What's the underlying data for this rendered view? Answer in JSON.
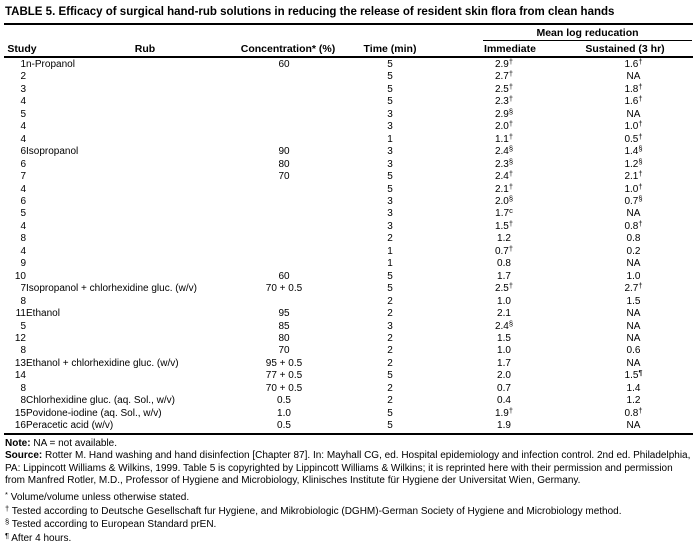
{
  "title": "TABLE 5. Efficacy of surgical hand-rub solutions in reducing the release of resident skin flora from clean hands",
  "table": {
    "span_header": "Mean log reducation",
    "columns": [
      "Study",
      "Rub",
      "Concentration* (%)",
      "Time (min)",
      "Immediate",
      "Sustained (3 hr)"
    ],
    "rows": [
      {
        "study": "1",
        "rub": "n-Propanol",
        "conc": "60",
        "time": "5",
        "imm": "2.9",
        "imm_sup": "†",
        "sus": "1.6",
        "sus_sup": "†"
      },
      {
        "study": "2",
        "time": "5",
        "imm": "2.7",
        "imm_sup": "†",
        "sus": "NA"
      },
      {
        "study": "3",
        "time": "5",
        "imm": "2.5",
        "imm_sup": "†",
        "sus": "1.8",
        "sus_sup": "†"
      },
      {
        "study": "4",
        "time": "5",
        "imm": "2.3",
        "imm_sup": "†",
        "sus": "1.6",
        "sus_sup": "†"
      },
      {
        "study": "5",
        "time": "3",
        "imm": "2.9",
        "imm_sup": "§",
        "sus": "NA"
      },
      {
        "study": "4",
        "time": "3",
        "imm": "2.0",
        "imm_sup": "†",
        "sus": "1.0",
        "sus_sup": "†"
      },
      {
        "study": "4",
        "time": "1",
        "imm": "1.1",
        "imm_sup": "†",
        "sus": "0.5",
        "sus_sup": "†"
      },
      {
        "study": "6",
        "rub": "Isopropanol",
        "conc": "90",
        "time": "3",
        "imm": "2.4",
        "imm_sup": "§",
        "sus": "1.4",
        "sus_sup": "§"
      },
      {
        "study": "6",
        "conc": "80",
        "time": "3",
        "imm": "2.3",
        "imm_sup": "§",
        "sus": "1.2",
        "sus_sup": "§"
      },
      {
        "study": "7",
        "conc": "70",
        "time": "5",
        "imm": "2.4",
        "imm_sup": "†",
        "sus": "2.1",
        "sus_sup": "†"
      },
      {
        "study": "4",
        "time": "5",
        "imm": "2.1",
        "imm_sup": "†",
        "sus": "1.0",
        "sus_sup": "†"
      },
      {
        "study": "6",
        "time": "3",
        "imm": "2.0",
        "imm_sup": "§",
        "sus": "0.7",
        "sus_sup": "§"
      },
      {
        "study": "5",
        "time": "3",
        "imm": "1.7",
        "imm_sup": "c",
        "sus": "NA"
      },
      {
        "study": "4",
        "time": "3",
        "imm": "1.5",
        "imm_sup": "†",
        "sus": "0.8",
        "sus_sup": "†"
      },
      {
        "study": "8",
        "time": "2",
        "imm": "1.2",
        "sus": "0.8"
      },
      {
        "study": "4",
        "time": "1",
        "imm": "0.7",
        "imm_sup": "†",
        "sus": "0.2"
      },
      {
        "study": "9",
        "time": "1",
        "imm": "0.8",
        "sus": "NA"
      },
      {
        "study": "10",
        "conc": "60",
        "time": "5",
        "imm": "1.7",
        "sus": "1.0"
      },
      {
        "study": "7",
        "rub": "Isopropanol + chlorhexidine gluc. (w/v)",
        "conc": "70 + 0.5",
        "time": "5",
        "imm": "2.5",
        "imm_sup": "†",
        "sus": "2.7",
        "sus_sup": "†"
      },
      {
        "study": "8",
        "time": "2",
        "imm": "1.0",
        "sus": "1.5"
      },
      {
        "study": "11",
        "rub": "Ethanol",
        "conc": "95",
        "time": "2",
        "imm": "2.1",
        "sus": "NA"
      },
      {
        "study": "5",
        "conc": "85",
        "time": "3",
        "imm": "2.4",
        "imm_sup": "§",
        "sus": "NA"
      },
      {
        "study": "12",
        "conc": "80",
        "time": "2",
        "imm": "1.5",
        "sus": "NA"
      },
      {
        "study": "8",
        "conc": "70",
        "time": "2",
        "imm": "1.0",
        "sus": "0.6"
      },
      {
        "study": "13",
        "rub": "Ethanol + chlorhexidine gluc. (w/v)",
        "conc": "95 + 0.5",
        "time": "2",
        "imm": "1.7",
        "sus": "NA"
      },
      {
        "study": "14",
        "conc": "77 + 0.5",
        "time": "5",
        "imm": "2.0",
        "sus": "1.5",
        "sus_sup": "¶"
      },
      {
        "study": "8",
        "conc": "70 + 0.5",
        "time": "2",
        "imm": "0.7",
        "sus": "1.4"
      },
      {
        "study": "8",
        "rub": "Chlorhexidine gluc. (aq. Sol., w/v)",
        "conc": "0.5",
        "time": "2",
        "imm": "0.4",
        "sus": "1.2"
      },
      {
        "study": "15",
        "rub": "Povidone-iodine (aq. Sol., w/v)",
        "conc": "1.0",
        "time": "5",
        "imm": "1.9",
        "imm_sup": "†",
        "sus": "0.8",
        "sus_sup": "†"
      },
      {
        "study": "16",
        "rub": "Peracetic acid (w/v)",
        "conc": "0.5",
        "time": "5",
        "imm": "1.9",
        "sus": "NA"
      }
    ]
  },
  "notes": {
    "note_label": "Note:",
    "note_text": " NA = not available.",
    "source_label": "Source:",
    "source_text": " Rotter M. Hand washing and hand disinfection [Chapter 87]. In: Mayhall CG, ed. Hospital epidemiology and infection control. 2nd ed. Philadelphia, PA: Lippincott Williams & Wilkins, 1999. Table 5 is copyrighted by Lippincott Williams & Wilkins; it is reprinted here with their permission and permission from Manfred Rotler, M.D., Professor of Hygiene and Microbiology, Klinisches Institute für Hygiene der Universitat Wien, Germany.",
    "footnotes": [
      {
        "sup": "*",
        "text": "Volume/volume unless otherwise stated."
      },
      {
        "sup": "†",
        "text": "Tested according to Deutsche Gesellschaft fur Hygiene, and Mikrobiologic (DGHM)-German Society of Hygiene and Microbiology method."
      },
      {
        "sup": "§",
        "text": "Tested according to European Standard prEN."
      },
      {
        "sup": "¶",
        "text": "After 4 hours."
      }
    ]
  },
  "colors": {
    "text": "#000000",
    "background": "#ffffff"
  }
}
